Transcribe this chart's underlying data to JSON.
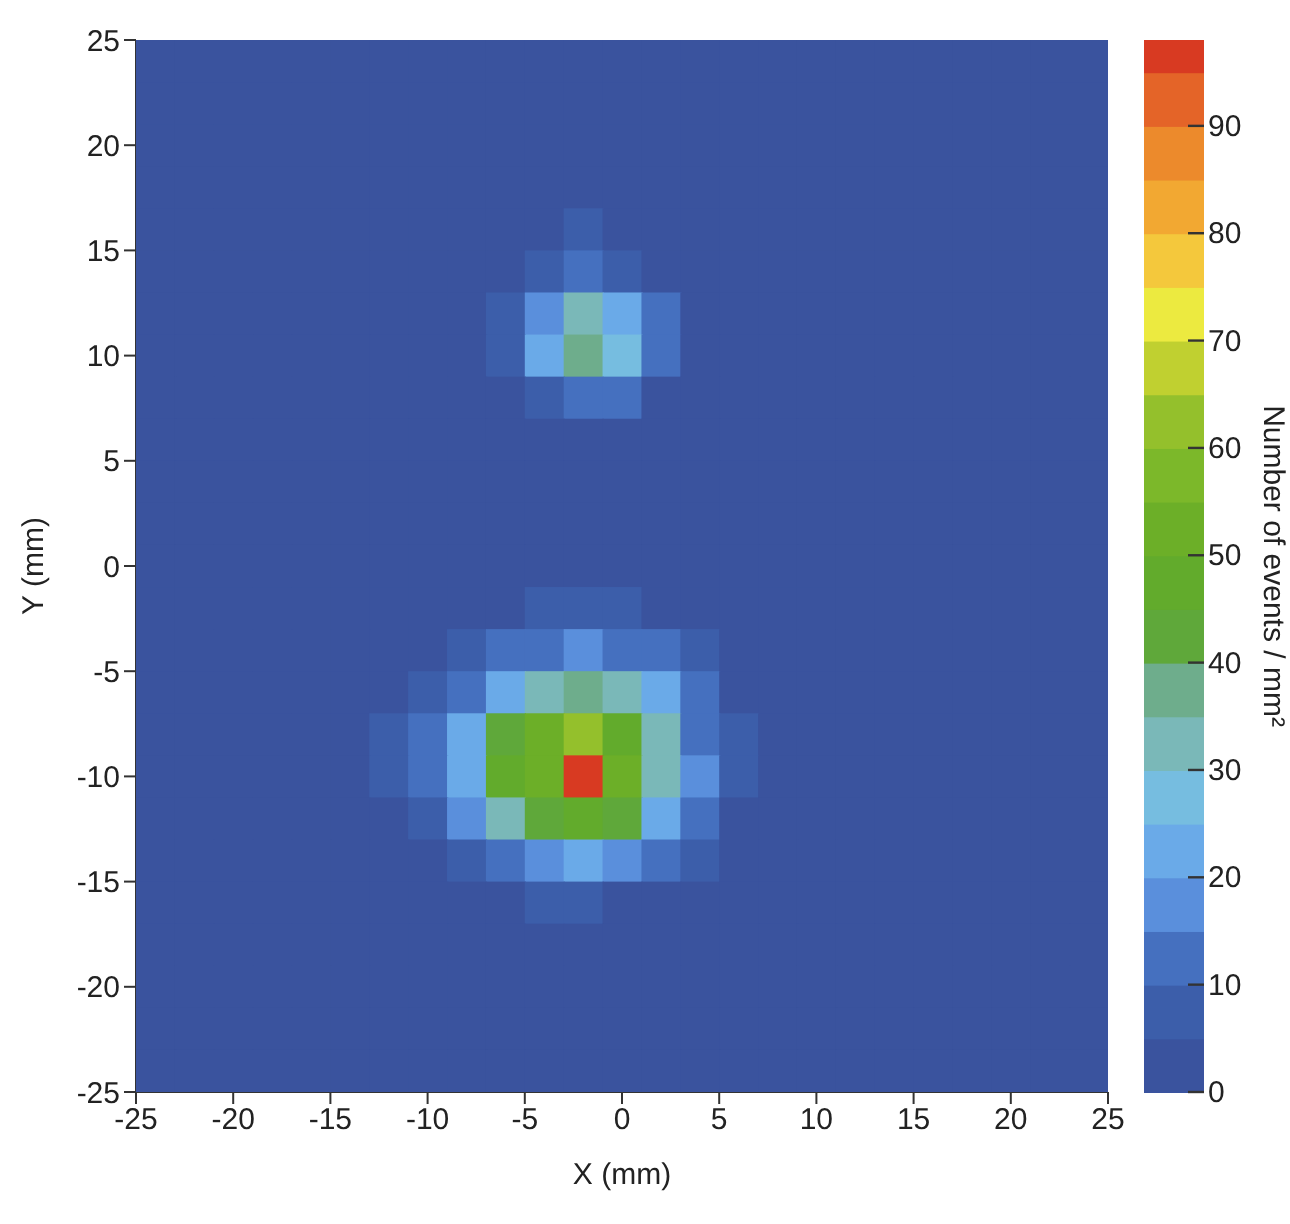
{
  "chart_data": {
    "type": "heatmap",
    "xlabel": "X (mm)",
    "ylabel": "Y (mm)",
    "clabel": "Number of events / mm²",
    "xlim": [
      -25,
      25
    ],
    "ylim": [
      -25,
      25
    ],
    "xticks": [
      -25,
      -20,
      -15,
      -10,
      -5,
      0,
      5,
      10,
      15,
      20,
      25
    ],
    "yticks": [
      -25,
      -20,
      -15,
      -10,
      -5,
      0,
      5,
      10,
      15,
      20,
      25
    ],
    "clim": [
      0,
      98
    ],
    "cticks": [
      0,
      10,
      20,
      30,
      40,
      50,
      60,
      70,
      80,
      90
    ],
    "cells": [
      [
        2,
        2,
        2,
        2,
        2,
        2,
        2,
        2,
        2,
        2,
        2,
        2,
        2,
        2,
        2,
        2,
        2,
        2,
        2,
        2,
        2,
        2,
        2,
        2,
        2
      ],
      [
        2,
        2,
        2,
        2,
        2,
        2,
        2,
        2,
        2,
        2,
        2,
        2,
        2,
        2,
        2,
        2,
        2,
        2,
        2,
        2,
        2,
        2,
        2,
        2,
        2
      ],
      [
        2,
        2,
        2,
        2,
        2,
        2,
        2,
        2,
        2,
        2,
        2,
        2,
        2,
        2,
        2,
        2,
        2,
        2,
        2,
        2,
        2,
        2,
        2,
        2,
        2
      ],
      [
        2,
        2,
        2,
        2,
        2,
        2,
        2,
        2,
        2,
        2,
        2,
        2,
        2,
        2,
        2,
        2,
        2,
        2,
        2,
        2,
        2,
        2,
        2,
        2,
        2
      ],
      [
        2,
        2,
        2,
        2,
        2,
        2,
        2,
        2,
        2,
        2,
        2,
        6,
        2,
        2,
        2,
        2,
        2,
        2,
        2,
        2,
        2,
        2,
        2,
        2,
        2
      ],
      [
        2,
        2,
        2,
        2,
        2,
        2,
        2,
        2,
        2,
        2,
        8,
        12,
        8,
        2,
        2,
        2,
        2,
        2,
        2,
        2,
        2,
        2,
        2,
        2,
        2
      ],
      [
        2,
        2,
        2,
        2,
        2,
        2,
        2,
        2,
        2,
        6,
        18,
        30,
        24,
        10,
        2,
        2,
        2,
        2,
        2,
        2,
        2,
        2,
        2,
        2,
        2
      ],
      [
        2,
        2,
        2,
        2,
        2,
        2,
        2,
        2,
        2,
        7,
        20,
        37,
        26,
        12,
        2,
        2,
        2,
        2,
        2,
        2,
        2,
        2,
        2,
        2,
        2
      ],
      [
        2,
        2,
        2,
        2,
        2,
        2,
        2,
        2,
        2,
        2,
        9,
        14,
        10,
        2,
        2,
        2,
        2,
        2,
        2,
        2,
        2,
        2,
        2,
        2,
        2
      ],
      [
        2,
        2,
        2,
        2,
        2,
        2,
        2,
        2,
        2,
        2,
        2,
        2,
        2,
        2,
        2,
        2,
        2,
        2,
        2,
        2,
        2,
        2,
        2,
        2,
        2
      ],
      [
        2,
        2,
        2,
        2,
        2,
        2,
        2,
        2,
        2,
        2,
        2,
        2,
        2,
        2,
        2,
        2,
        2,
        2,
        2,
        2,
        2,
        2,
        2,
        2,
        2
      ],
      [
        2,
        2,
        2,
        2,
        2,
        2,
        2,
        2,
        2,
        2,
        2,
        2,
        2,
        2,
        2,
        2,
        2,
        2,
        2,
        2,
        2,
        2,
        2,
        2,
        2
      ],
      [
        2,
        2,
        2,
        2,
        2,
        2,
        2,
        2,
        2,
        2,
        2,
        2,
        2,
        2,
        2,
        2,
        2,
        2,
        2,
        2,
        2,
        2,
        2,
        2,
        2
      ],
      [
        2,
        2,
        2,
        2,
        2,
        2,
        2,
        2,
        2,
        2,
        6,
        7,
        6,
        2,
        2,
        2,
        2,
        2,
        2,
        2,
        2,
        2,
        2,
        2,
        2
      ],
      [
        2,
        2,
        2,
        2,
        2,
        2,
        2,
        2,
        6,
        10,
        14,
        16,
        14,
        10,
        6,
        2,
        2,
        2,
        2,
        2,
        2,
        2,
        2,
        2,
        2
      ],
      [
        2,
        2,
        2,
        2,
        2,
        2,
        2,
        7,
        14,
        22,
        32,
        36,
        30,
        20,
        10,
        2,
        2,
        2,
        2,
        2,
        2,
        2,
        2,
        2,
        2
      ],
      [
        2,
        2,
        2,
        2,
        2,
        2,
        6,
        10,
        20,
        42,
        50,
        62,
        48,
        30,
        14,
        6,
        2,
        2,
        2,
        2,
        2,
        2,
        2,
        2,
        2
      ],
      [
        2,
        2,
        2,
        2,
        2,
        2,
        7,
        12,
        22,
        45,
        55,
        96,
        52,
        34,
        16,
        7,
        2,
        2,
        2,
        2,
        2,
        2,
        2,
        2,
        2
      ],
      [
        2,
        2,
        2,
        2,
        2,
        2,
        2,
        9,
        18,
        30,
        42,
        46,
        40,
        24,
        12,
        2,
        2,
        2,
        2,
        2,
        2,
        2,
        2,
        2,
        2
      ],
      [
        2,
        2,
        2,
        2,
        2,
        2,
        2,
        2,
        8,
        14,
        18,
        20,
        16,
        10,
        6,
        2,
        2,
        2,
        2,
        2,
        2,
        2,
        2,
        2,
        2
      ],
      [
        2,
        2,
        2,
        2,
        2,
        2,
        2,
        2,
        2,
        2,
        6,
        7,
        2,
        2,
        2,
        2,
        2,
        2,
        2,
        2,
        2,
        2,
        2,
        2,
        2
      ],
      [
        2,
        2,
        2,
        2,
        2,
        2,
        2,
        2,
        2,
        2,
        2,
        2,
        2,
        2,
        2,
        2,
        2,
        2,
        2,
        2,
        2,
        2,
        2,
        2,
        2
      ],
      [
        2,
        2,
        2,
        2,
        2,
        2,
        2,
        2,
        2,
        2,
        2,
        2,
        2,
        2,
        2,
        2,
        2,
        2,
        2,
        2,
        2,
        2,
        2,
        2,
        2
      ],
      [
        2,
        2,
        2,
        2,
        2,
        2,
        2,
        2,
        2,
        2,
        2,
        2,
        2,
        2,
        2,
        2,
        2,
        2,
        2,
        2,
        2,
        2,
        2,
        2,
        2
      ],
      [
        2,
        2,
        2,
        2,
        2,
        2,
        2,
        2,
        2,
        2,
        2,
        2,
        2,
        2,
        2,
        2,
        2,
        2,
        2,
        2,
        2,
        2,
        2,
        2,
        2
      ]
    ]
  }
}
